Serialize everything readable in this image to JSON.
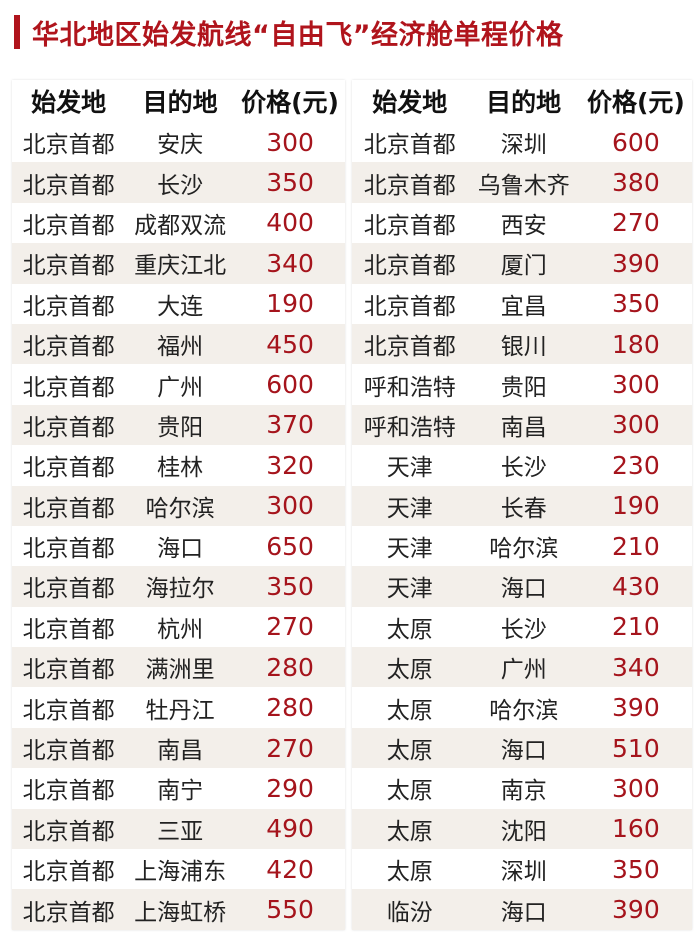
{
  "title": "华北地区始发航线“自由飞”经济舱单程价格",
  "colors": {
    "accent": "#b0141c",
    "price": "#a5141c",
    "alt_row": "#f3efea"
  },
  "headers": [
    "始发地",
    "目的地",
    "价格(元)"
  ],
  "left_rows": [
    [
      "北京首都",
      "安庆",
      "300"
    ],
    [
      "北京首都",
      "长沙",
      "350"
    ],
    [
      "北京首都",
      "成都双流",
      "400"
    ],
    [
      "北京首都",
      "重庆江北",
      "340"
    ],
    [
      "北京首都",
      "大连",
      "190"
    ],
    [
      "北京首都",
      "福州",
      "450"
    ],
    [
      "北京首都",
      "广州",
      "600"
    ],
    [
      "北京首都",
      "贵阳",
      "370"
    ],
    [
      "北京首都",
      "桂林",
      "320"
    ],
    [
      "北京首都",
      "哈尔滨",
      "300"
    ],
    [
      "北京首都",
      "海口",
      "650"
    ],
    [
      "北京首都",
      "海拉尔",
      "350"
    ],
    [
      "北京首都",
      "杭州",
      "270"
    ],
    [
      "北京首都",
      "满洲里",
      "280"
    ],
    [
      "北京首都",
      "牡丹江",
      "280"
    ],
    [
      "北京首都",
      "南昌",
      "270"
    ],
    [
      "北京首都",
      "南宁",
      "290"
    ],
    [
      "北京首都",
      "三亚",
      "490"
    ],
    [
      "北京首都",
      "上海浦东",
      "420"
    ],
    [
      "北京首都",
      "上海虹桥",
      "550"
    ]
  ],
  "right_rows": [
    [
      "北京首都",
      "深圳",
      "600"
    ],
    [
      "北京首都",
      "乌鲁木齐",
      "380"
    ],
    [
      "北京首都",
      "西安",
      "270"
    ],
    [
      "北京首都",
      "厦门",
      "390"
    ],
    [
      "北京首都",
      "宜昌",
      "350"
    ],
    [
      "北京首都",
      "银川",
      "180"
    ],
    [
      "呼和浩特",
      "贵阳",
      "300"
    ],
    [
      "呼和浩特",
      "南昌",
      "300"
    ],
    [
      "天津",
      "长沙",
      "230"
    ],
    [
      "天津",
      "长春",
      "190"
    ],
    [
      "天津",
      "哈尔滨",
      "210"
    ],
    [
      "天津",
      "海口",
      "430"
    ],
    [
      "太原",
      "长沙",
      "210"
    ],
    [
      "太原",
      "广州",
      "340"
    ],
    [
      "太原",
      "哈尔滨",
      "390"
    ],
    [
      "太原",
      "海口",
      "510"
    ],
    [
      "太原",
      "南京",
      "300"
    ],
    [
      "太原",
      "沈阳",
      "160"
    ],
    [
      "太原",
      "深圳",
      "350"
    ],
    [
      "临汾",
      "海口",
      "390"
    ]
  ]
}
